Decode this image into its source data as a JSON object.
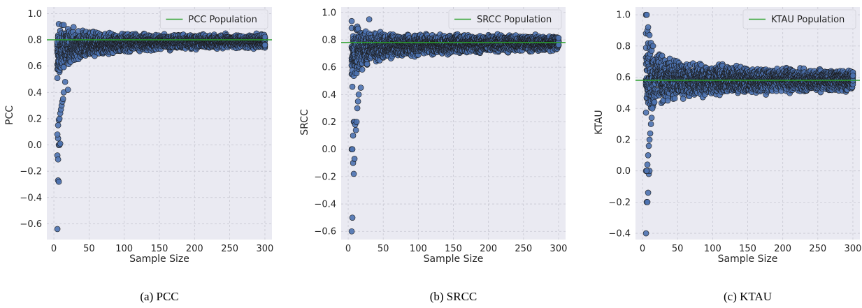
{
  "colors": {
    "plot_bg": "#eaeaf2",
    "grid": "#c8c8d2",
    "point_fill": "#4c72b0",
    "point_edge": "#1a1a1a",
    "population_line": "#2ca02c"
  },
  "chart_data": [
    {
      "type": "scatter",
      "caption": "(a) PCC",
      "xlabel": "Sample Size",
      "ylabel": "PCC",
      "xlim": [
        -10,
        310
      ],
      "ylim": [
        -0.72,
        1.05
      ],
      "xticks": [
        0,
        50,
        100,
        150,
        200,
        250,
        300
      ],
      "yticks": [
        -0.6,
        -0.4,
        -0.2,
        0.0,
        0.2,
        0.4,
        0.6,
        0.8,
        1.0
      ],
      "ytick_labels": [
        "−0.6",
        "−0.4",
        "−0.2",
        "0.0",
        "0.2",
        "0.4",
        "0.6",
        "0.8",
        "1.0"
      ],
      "grid": true,
      "legend": {
        "position": "top-right",
        "label": "PCC Population"
      },
      "population_value": 0.8,
      "x_range": [
        5,
        300
      ],
      "band": {
        "center": 0.8,
        "lower_at_x5": 0.38,
        "upper_at_x5": 0.99,
        "lower_at_x300": 0.73,
        "upper_at_x300": 0.85,
        "ceiling": 0.99
      },
      "outliers": [
        [
          5,
          -0.64
        ],
        [
          6,
          -0.27
        ],
        [
          7,
          -0.28
        ],
        [
          5,
          -0.08
        ],
        [
          6,
          -0.11
        ],
        [
          7,
          0.0
        ],
        [
          8,
          0.0
        ],
        [
          9,
          0.01
        ],
        [
          6,
          0.05
        ],
        [
          5,
          0.08
        ],
        [
          6,
          0.15
        ],
        [
          7,
          0.19
        ],
        [
          8,
          0.2
        ],
        [
          9,
          0.24
        ],
        [
          10,
          0.27
        ],
        [
          11,
          0.3
        ],
        [
          12,
          0.33
        ],
        [
          13,
          0.35
        ],
        [
          14,
          0.4
        ],
        [
          20,
          0.42
        ],
        [
          16,
          0.48
        ]
      ]
    },
    {
      "type": "scatter",
      "caption": "(b) SRCC",
      "xlabel": "Sample Size",
      "ylabel": "SRCC",
      "xlim": [
        -10,
        310
      ],
      "ylim": [
        -0.66,
        1.04
      ],
      "xticks": [
        0,
        50,
        100,
        150,
        200,
        250,
        300
      ],
      "yticks": [
        -0.6,
        -0.4,
        -0.2,
        0.0,
        0.2,
        0.4,
        0.6,
        0.8,
        1.0
      ],
      "ytick_labels": [
        "−0.6",
        "−0.4",
        "−0.2",
        "0.0",
        "0.2",
        "0.4",
        "0.6",
        "0.8",
        "1.0"
      ],
      "grid": true,
      "legend": {
        "position": "top-right",
        "label": "SRCC Population"
      },
      "population_value": 0.78,
      "x_range": [
        5,
        300
      ],
      "band": {
        "center": 0.78,
        "lower_at_x5": 0.35,
        "upper_at_x5": 1.0,
        "lower_at_x300": 0.71,
        "upper_at_x300": 0.84,
        "ceiling": 1.0
      },
      "outliers": [
        [
          5,
          -0.6
        ],
        [
          6,
          -0.5
        ],
        [
          7,
          -0.1
        ],
        [
          8,
          -0.18
        ],
        [
          9,
          -0.07
        ],
        [
          5,
          0.0
        ],
        [
          6,
          0.0
        ],
        [
          7,
          0.1
        ],
        [
          8,
          0.2
        ],
        [
          9,
          0.2
        ],
        [
          10,
          0.18
        ],
        [
          11,
          0.14
        ],
        [
          12,
          0.2
        ],
        [
          13,
          0.3
        ],
        [
          14,
          0.35
        ],
        [
          15,
          0.4
        ],
        [
          18,
          0.45
        ],
        [
          30,
          0.95
        ]
      ]
    },
    {
      "type": "scatter",
      "caption": "(c) KTAU",
      "xlabel": "Sample Size",
      "ylabel": "KTAU",
      "xlim": [
        -10,
        310
      ],
      "ylim": [
        -0.44,
        1.05
      ],
      "xticks": [
        0,
        50,
        100,
        150,
        200,
        250,
        300
      ],
      "yticks": [
        -0.4,
        -0.2,
        0.0,
        0.2,
        0.4,
        0.6,
        0.8,
        1.0
      ],
      "ytick_labels": [
        "−0.4",
        "−0.2",
        "0.0",
        "0.2",
        "0.4",
        "0.6",
        "0.8",
        "1.0"
      ],
      "grid": true,
      "legend": {
        "position": "top-right",
        "label": "KTAU Population"
      },
      "population_value": 0.58,
      "x_range": [
        5,
        300
      ],
      "band": {
        "center": 0.58,
        "lower_at_x5": 0.2,
        "upper_at_x5": 1.0,
        "lower_at_x300": 0.5,
        "upper_at_x300": 0.66,
        "ceiling": 1.0
      },
      "outliers": [
        [
          5,
          -0.4
        ],
        [
          6,
          -0.2
        ],
        [
          7,
          -0.2
        ],
        [
          8,
          -0.14
        ],
        [
          9,
          -0.02
        ],
        [
          10,
          0.0
        ],
        [
          5,
          0.0
        ],
        [
          6,
          0.0
        ],
        [
          7,
          0.04
        ],
        [
          8,
          0.1
        ],
        [
          9,
          0.16
        ],
        [
          10,
          0.2
        ],
        [
          11,
          0.24
        ],
        [
          12,
          0.3
        ],
        [
          13,
          0.34
        ],
        [
          14,
          0.4
        ],
        [
          5,
          1.0
        ],
        [
          6,
          1.0
        ],
        [
          7,
          0.9
        ],
        [
          8,
          0.92
        ],
        [
          10,
          0.87
        ],
        [
          12,
          0.82
        ],
        [
          15,
          0.8
        ]
      ]
    }
  ]
}
